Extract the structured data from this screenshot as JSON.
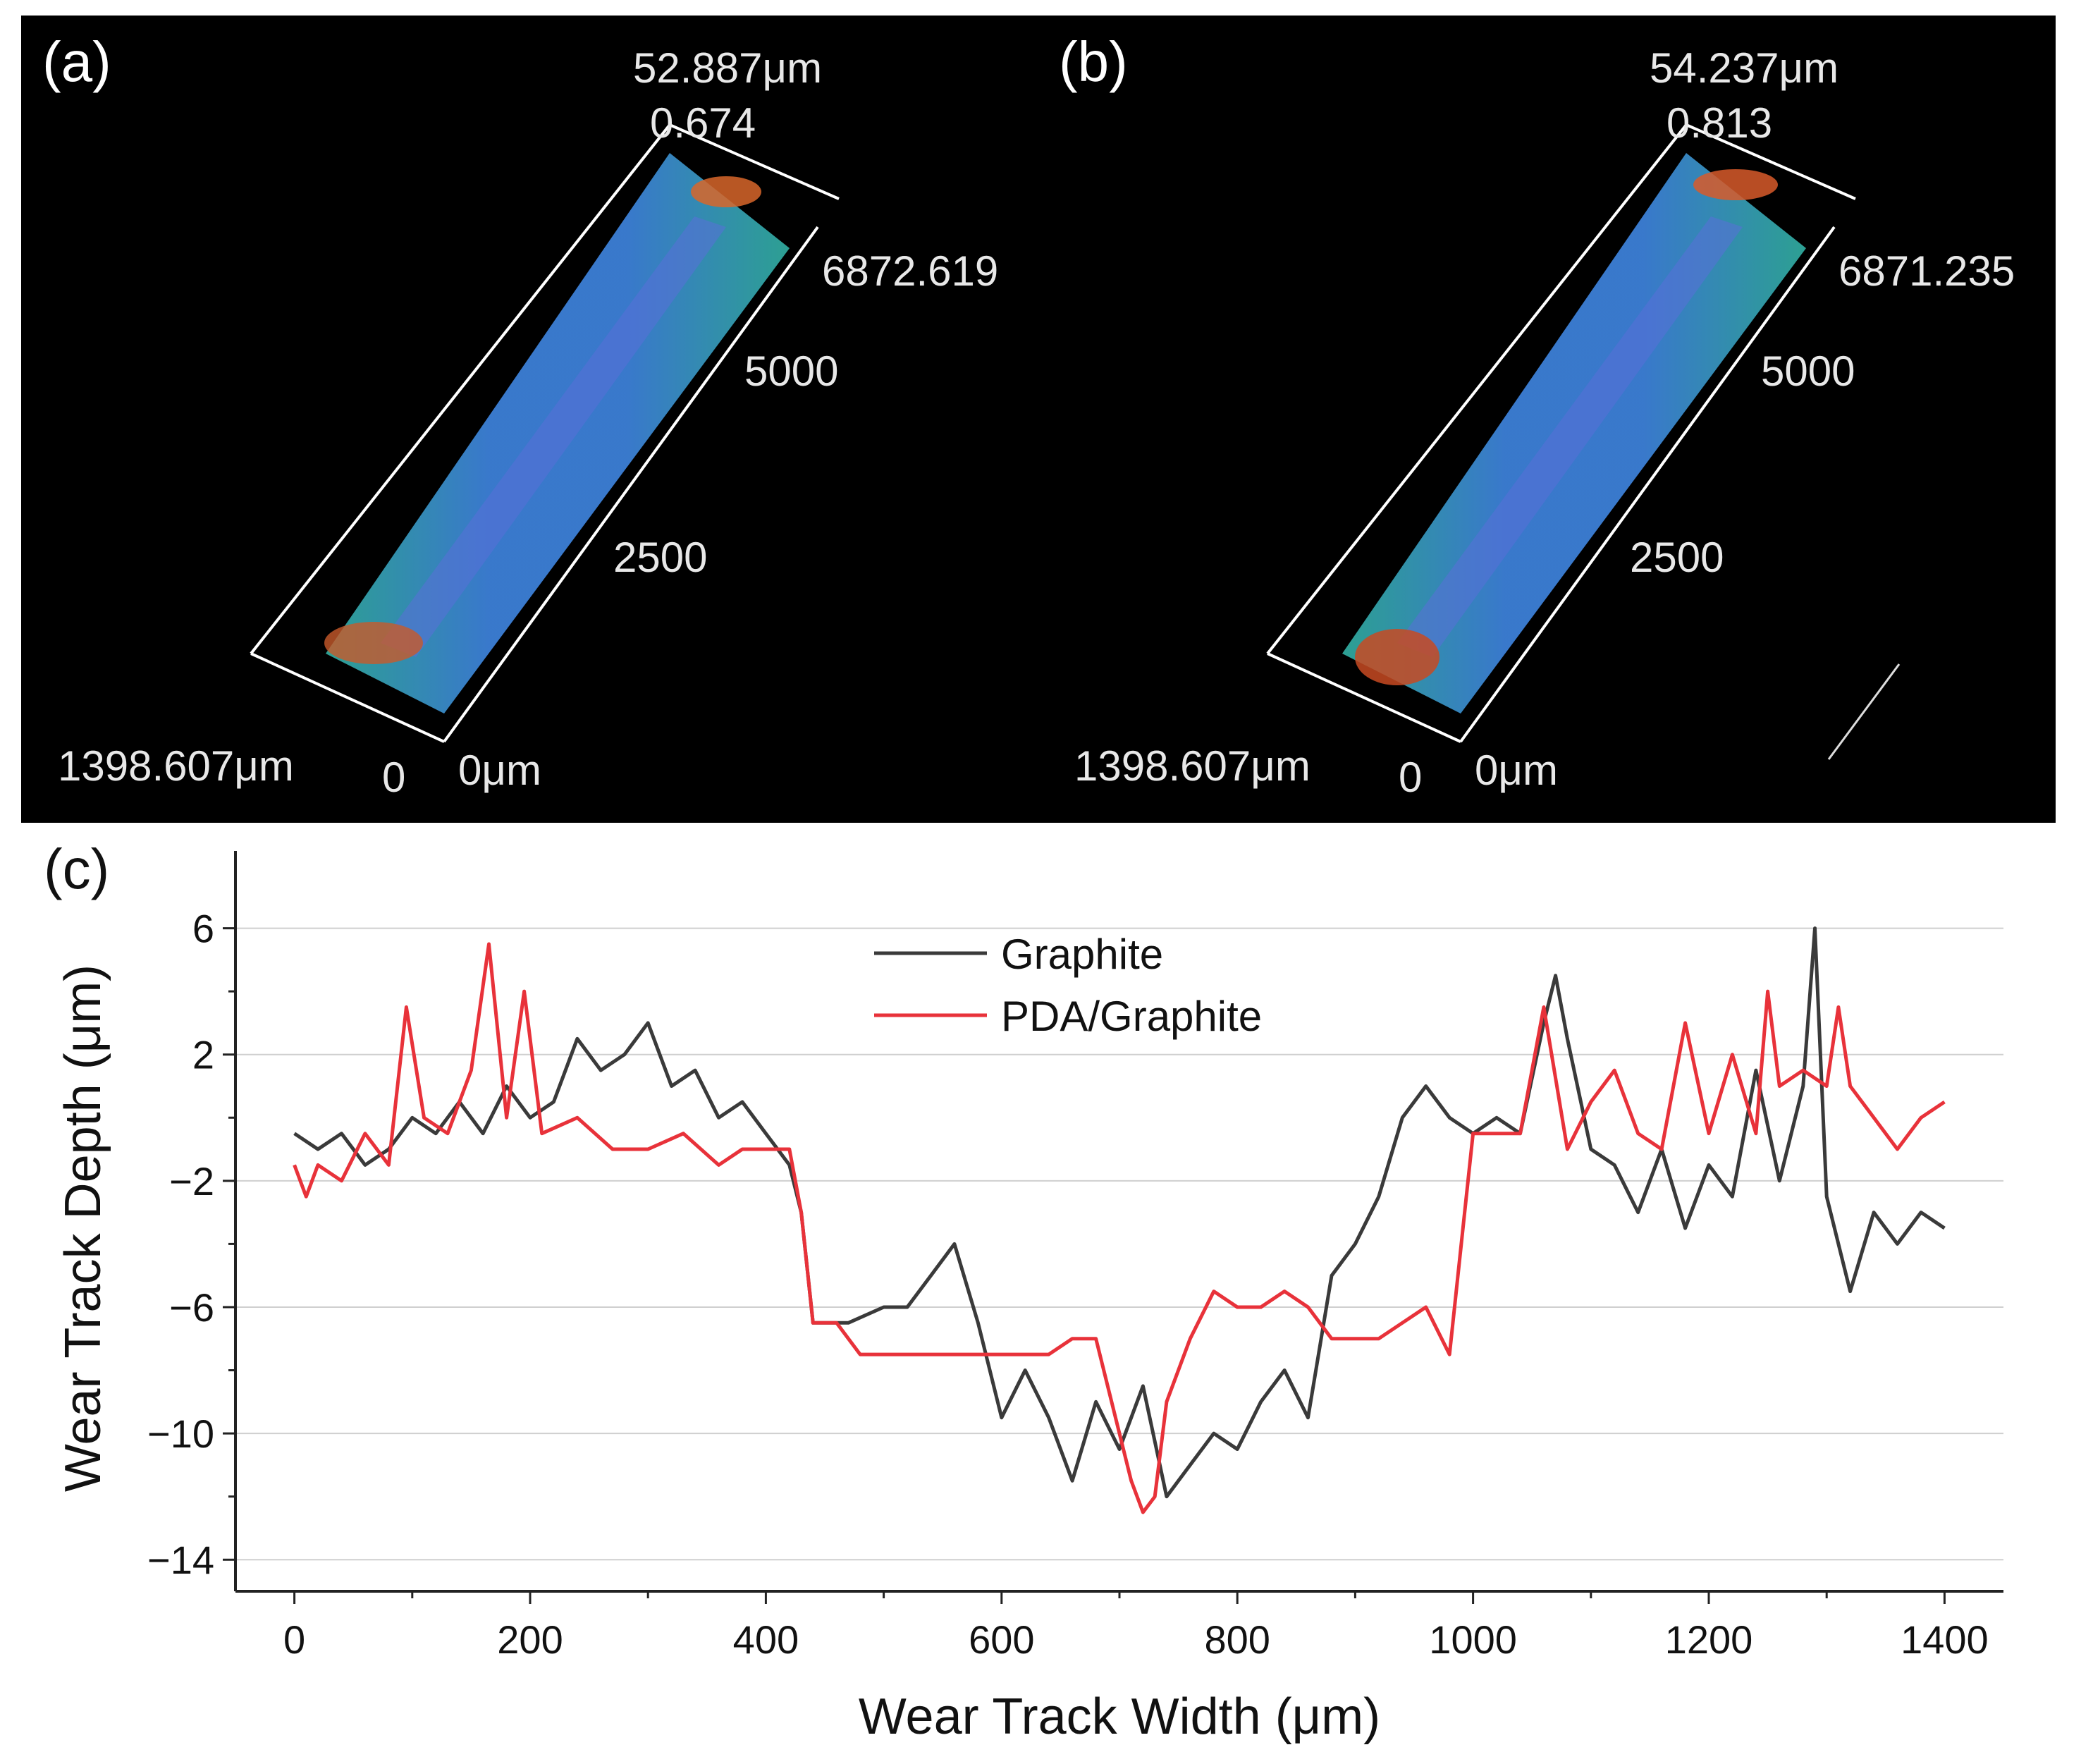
{
  "panels": [
    {
      "letter": "(a)",
      "height_label": "52.887μm",
      "top_value": "0.674",
      "length_end": "6872.619",
      "tick_5000": "5000",
      "tick_2500": "2500",
      "width_label": "1398.607μm",
      "zero": "0",
      "zero_um": "0μm"
    },
    {
      "letter": "(b)",
      "height_label": "54.237μm",
      "top_value": "0.813",
      "length_end": "6871.235",
      "tick_5000": "5000",
      "tick_2500": "2500",
      "width_label": "1398.607μm",
      "zero": "0",
      "zero_um": "0μm"
    }
  ],
  "chart_letter": "(c)",
  "chart_data": {
    "type": "line",
    "xlabel": "Wear Track Width (μm)",
    "ylabel": "Wear Track Depth (μm)",
    "xlim": [
      -50,
      1450
    ],
    "ylim": [
      -15,
      8
    ],
    "xticks": [
      0,
      200,
      400,
      600,
      800,
      1000,
      1200,
      1400
    ],
    "yticks": [
      -14,
      -10,
      -6,
      -2,
      2,
      6
    ],
    "ytick_labels": [
      "−14",
      "−10",
      "−6",
      "−2",
      "2",
      "6"
    ],
    "grid": "horizontal",
    "legend_position": "top-center",
    "series": [
      {
        "name": "Graphite",
        "color": "#3a3a3a",
        "x": [
          0,
          20,
          40,
          60,
          80,
          100,
          120,
          140,
          160,
          180,
          200,
          220,
          240,
          260,
          280,
          300,
          320,
          340,
          360,
          380,
          400,
          410,
          420,
          430,
          440,
          450,
          470,
          500,
          520,
          540,
          560,
          580,
          600,
          620,
          640,
          660,
          680,
          700,
          720,
          740,
          760,
          780,
          800,
          820,
          840,
          860,
          880,
          900,
          920,
          940,
          960,
          980,
          1000,
          1020,
          1040,
          1060,
          1070,
          1080,
          1100,
          1120,
          1140,
          1160,
          1180,
          1200,
          1220,
          1240,
          1260,
          1280,
          1290,
          1300,
          1320,
          1340,
          1360,
          1380,
          1400
        ],
        "y": [
          -0.5,
          -1,
          -0.5,
          -1.5,
          -1,
          0,
          -0.5,
          0.5,
          -0.5,
          1,
          0,
          0.5,
          2.5,
          1.5,
          2,
          3,
          1,
          1.5,
          0,
          0.5,
          -0.5,
          -1,
          -1.5,
          -3,
          -6.5,
          -6.5,
          -6.5,
          -6,
          -6,
          -5,
          -4,
          -6.5,
          -9.5,
          -8,
          -9.5,
          -11.5,
          -9,
          -10.5,
          -8.5,
          -12,
          -11,
          -10,
          -10.5,
          -9,
          -8,
          -9.5,
          -5,
          -4,
          -2.5,
          0,
          1,
          0,
          -0.5,
          0,
          -0.5,
          3,
          4.5,
          2.5,
          -1,
          -1.5,
          -3,
          -1,
          -3.5,
          -1.5,
          -2.5,
          1.5,
          -2,
          1,
          6,
          -2.5,
          -5.5,
          -3,
          -4,
          -3,
          -3.5
        ]
      },
      {
        "name": "PDA/Graphite",
        "color": "#e8323a",
        "x": [
          0,
          10,
          20,
          40,
          60,
          80,
          95,
          110,
          130,
          150,
          165,
          180,
          195,
          210,
          240,
          270,
          300,
          330,
          360,
          380,
          400,
          420,
          430,
          440,
          460,
          480,
          500,
          520,
          540,
          560,
          580,
          600,
          620,
          640,
          660,
          680,
          700,
          710,
          720,
          730,
          740,
          760,
          780,
          800,
          820,
          840,
          860,
          880,
          900,
          920,
          940,
          960,
          980,
          1000,
          1020,
          1040,
          1060,
          1080,
          1100,
          1120,
          1140,
          1160,
          1180,
          1200,
          1220,
          1240,
          1250,
          1260,
          1280,
          1300,
          1310,
          1320,
          1340,
          1360,
          1380,
          1400
        ],
        "y": [
          -1.5,
          -2.5,
          -1.5,
          -2,
          -0.5,
          -1.5,
          3.5,
          0,
          -0.5,
          1.5,
          5.5,
          0,
          4,
          -0.5,
          0,
          -1,
          -1,
          -0.5,
          -1.5,
          -1,
          -1,
          -1,
          -3,
          -6.5,
          -6.5,
          -7.5,
          -7.5,
          -7.5,
          -7.5,
          -7.5,
          -7.5,
          -7.5,
          -7.5,
          -7.5,
          -7,
          -7,
          -10,
          -11.5,
          -12.5,
          -12,
          -9,
          -7,
          -5.5,
          -6,
          -6,
          -5.5,
          -6,
          -7,
          -7,
          -7,
          -6.5,
          -6,
          -7.5,
          -0.5,
          -0.5,
          -0.5,
          3.5,
          -1,
          0.5,
          1.5,
          -0.5,
          -1,
          3,
          -0.5,
          2,
          -0.5,
          4,
          1,
          1.5,
          1,
          3.5,
          1,
          0,
          -1,
          0,
          0.5
        ]
      }
    ]
  }
}
